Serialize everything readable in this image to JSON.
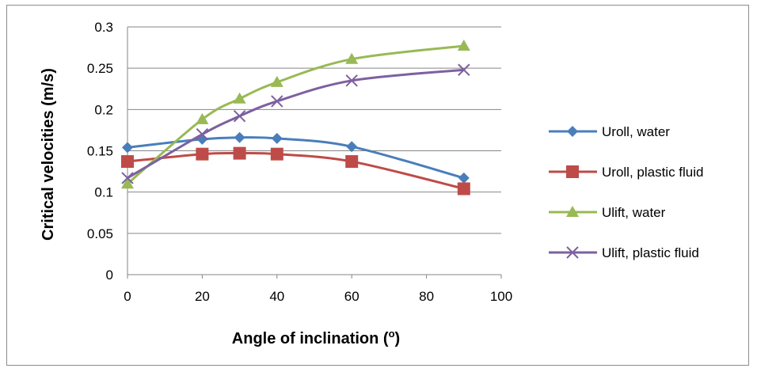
{
  "chart_data": {
    "type": "line",
    "title": "",
    "xlabel": "Angle of inclination (",
    "xlabel_super": "o",
    "xlabel_end": ")",
    "ylabel": "Critical velocities (m/s)",
    "xlim": [
      0,
      100
    ],
    "ylim": [
      0,
      0.3
    ],
    "xticks": [
      0,
      20,
      40,
      60,
      80,
      100
    ],
    "xtick_labels": [
      "0",
      "20",
      "40",
      "60",
      "80",
      "100"
    ],
    "yticks": [
      0,
      0.05,
      0.1,
      0.15,
      0.2,
      0.25,
      0.3
    ],
    "ytick_labels": [
      "0",
      "0.05",
      "0.1",
      "0.15",
      "0.2",
      "0.25",
      "0.3"
    ],
    "grid": "horizontal",
    "legend_position": "right",
    "x": [
      0,
      20,
      30,
      40,
      60,
      90
    ],
    "series": [
      {
        "name": "Uroll, water",
        "values": [
          0.154,
          0.164,
          0.166,
          0.165,
          0.155,
          0.117
        ],
        "color": "#4a7ebb",
        "marker": "diamond"
      },
      {
        "name": "Uroll, plastic fluid",
        "values": [
          0.137,
          0.146,
          0.147,
          0.146,
          0.137,
          0.104
        ],
        "color": "#be4b48",
        "marker": "square"
      },
      {
        "name": "Ulift, water",
        "values": [
          0.11,
          0.188,
          0.213,
          0.233,
          0.261,
          0.277
        ],
        "color": "#98b954",
        "marker": "triangle"
      },
      {
        "name": "Ulift, plastic fluid",
        "values": [
          0.117,
          0.17,
          0.192,
          0.21,
          0.235,
          0.248
        ],
        "color": "#7d60a0",
        "marker": "x"
      }
    ]
  }
}
